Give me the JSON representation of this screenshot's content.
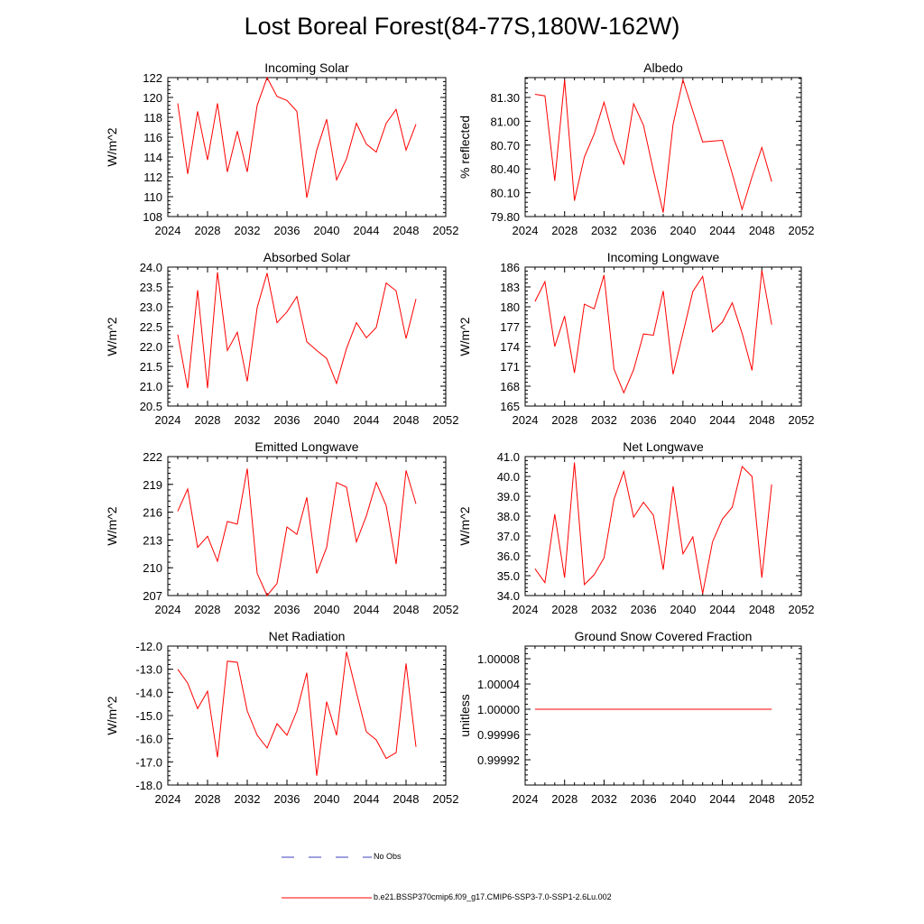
{
  "title": "Lost Boreal Forest(84-77S,180W-162W)",
  "legend": {
    "obs_label": "No Obs",
    "model_label": "b.e21.BSSP370cmip6.f09_g17.CMIP6-SSP3-7.0-SSP1-2.6Lu.002",
    "obs_color": "#3f3fbf",
    "model_color": "#ff0000"
  },
  "chart_data": [
    {
      "type": "line",
      "title": "Incoming Solar",
      "ylabel": "W/m^2",
      "xlim": [
        2024,
        2052
      ],
      "xticks": [
        "2024",
        "2028",
        "2032",
        "2036",
        "2040",
        "2044",
        "2048",
        "2052"
      ],
      "ylim": [
        108,
        122
      ],
      "yticks": [
        "108",
        "110",
        "112",
        "114",
        "116",
        "118",
        "120",
        "122"
      ],
      "x": [
        2025,
        2026,
        2027,
        2028,
        2029,
        2030,
        2031,
        2032,
        2033,
        2034,
        2035,
        2036,
        2037,
        2038,
        2039,
        2040,
        2041,
        2042,
        2043,
        2044,
        2045,
        2046,
        2047,
        2048,
        2049
      ],
      "series": [
        {
          "values": [
            119.4,
            112.3,
            118.6,
            113.7,
            119.4,
            112.5,
            116.6,
            112.5,
            119.2,
            122.0,
            120.1,
            119.7,
            118.6,
            109.9,
            114.7,
            117.8,
            111.7,
            113.8,
            117.4,
            115.3,
            114.5,
            117.4,
            118.8,
            114.7,
            117.3
          ]
        }
      ]
    },
    {
      "type": "line",
      "title": "Albedo",
      "ylabel": "% reflected",
      "xlim": [
        2024,
        2052
      ],
      "xticks": [
        "2024",
        "2028",
        "2032",
        "2036",
        "2040",
        "2044",
        "2048",
        "2052"
      ],
      "ylim": [
        79.8,
        81.55
      ],
      "yticks": [
        "79.80",
        "80.10",
        "80.40",
        "80.70",
        "81.00",
        "81.30"
      ],
      "x": [
        2025,
        2026,
        2027,
        2028,
        2029,
        2030,
        2031,
        2032,
        2033,
        2034,
        2035,
        2036,
        2037,
        2038,
        2039,
        2040,
        2041,
        2042,
        2043,
        2044,
        2045,
        2046,
        2047,
        2048,
        2049
      ],
      "series": [
        {
          "values": [
            81.34,
            81.32,
            80.25,
            81.52,
            80.0,
            80.55,
            80.84,
            81.24,
            80.77,
            80.46,
            81.22,
            80.95,
            80.38,
            79.85,
            80.96,
            81.52,
            81.13,
            80.74,
            80.75,
            80.76,
            80.34,
            79.89,
            80.3,
            80.67,
            80.24
          ]
        }
      ]
    },
    {
      "type": "line",
      "title": "Absorbed Solar",
      "ylabel": "W/m^2",
      "xlim": [
        2024,
        2052
      ],
      "xticks": [
        "2024",
        "2028",
        "2032",
        "2036",
        "2040",
        "2044",
        "2048",
        "2052"
      ],
      "ylim": [
        20.5,
        24.0
      ],
      "yticks": [
        "20.5",
        "21.0",
        "21.5",
        "22.0",
        "22.5",
        "23.0",
        "23.5",
        "24.0"
      ],
      "x": [
        2025,
        2026,
        2027,
        2028,
        2029,
        2030,
        2031,
        2032,
        2033,
        2034,
        2035,
        2036,
        2037,
        2038,
        2039,
        2040,
        2041,
        2042,
        2043,
        2044,
        2045,
        2046,
        2047,
        2048,
        2049
      ],
      "series": [
        {
          "values": [
            22.3,
            20.95,
            23.42,
            20.95,
            23.87,
            21.9,
            22.36,
            21.12,
            22.98,
            23.85,
            22.6,
            22.87,
            23.26,
            22.12,
            21.9,
            21.7,
            21.07,
            21.95,
            22.6,
            22.22,
            22.48,
            23.6,
            23.4,
            22.2,
            23.2
          ]
        }
      ]
    },
    {
      "type": "line",
      "title": "Incoming Longwave",
      "ylabel": "W/m^2",
      "xlim": [
        2024,
        2052
      ],
      "xticks": [
        "2024",
        "2028",
        "2032",
        "2036",
        "2040",
        "2044",
        "2048",
        "2052"
      ],
      "ylim": [
        165,
        186
      ],
      "yticks": [
        "165",
        "168",
        "171",
        "174",
        "177",
        "180",
        "183",
        "186"
      ],
      "x": [
        2025,
        2026,
        2027,
        2028,
        2029,
        2030,
        2031,
        2032,
        2033,
        2034,
        2035,
        2036,
        2037,
        2038,
        2039,
        2040,
        2041,
        2042,
        2043,
        2044,
        2045,
        2046,
        2047,
        2048,
        2049
      ],
      "series": [
        {
          "values": [
            180.8,
            183.8,
            174.0,
            178.6,
            170.0,
            180.4,
            179.7,
            184.8,
            170.6,
            167.0,
            170.5,
            175.9,
            175.7,
            182.4,
            169.8,
            176.0,
            182.3,
            184.6,
            176.2,
            177.7,
            180.6,
            176.0,
            170.4,
            185.5,
            177.3
          ]
        }
      ]
    },
    {
      "type": "line",
      "title": "Emitted Longwave",
      "ylabel": "W/m^2",
      "xlim": [
        2024,
        2052
      ],
      "xticks": [
        "2024",
        "2028",
        "2032",
        "2036",
        "2040",
        "2044",
        "2048",
        "2052"
      ],
      "ylim": [
        207,
        222
      ],
      "yticks": [
        "207",
        "210",
        "213",
        "216",
        "219",
        "222"
      ],
      "x": [
        2025,
        2026,
        2027,
        2028,
        2029,
        2030,
        2031,
        2032,
        2033,
        2034,
        2035,
        2036,
        2037,
        2038,
        2039,
        2040,
        2041,
        2042,
        2043,
        2044,
        2045,
        2046,
        2047,
        2048,
        2049
      ],
      "series": [
        {
          "values": [
            216.1,
            218.5,
            212.2,
            213.4,
            210.7,
            215.0,
            214.7,
            220.7,
            209.4,
            207.0,
            208.3,
            214.4,
            213.6,
            217.6,
            209.4,
            212.2,
            219.2,
            218.7,
            212.8,
            215.6,
            219.2,
            216.7,
            210.4,
            220.5,
            216.9
          ]
        }
      ]
    },
    {
      "type": "line",
      "title": "Net Longwave",
      "ylabel": "W/m^2",
      "xlim": [
        2024,
        2052
      ],
      "xticks": [
        "2024",
        "2028",
        "2032",
        "2036",
        "2040",
        "2044",
        "2048",
        "2052"
      ],
      "ylim": [
        34.0,
        41.0
      ],
      "yticks": [
        "34.0",
        "35.0",
        "36.0",
        "37.0",
        "38.0",
        "39.0",
        "40.0",
        "41.0"
      ],
      "x": [
        2025,
        2026,
        2027,
        2028,
        2029,
        2030,
        2031,
        2032,
        2033,
        2034,
        2035,
        2036,
        2037,
        2038,
        2039,
        2040,
        2041,
        2042,
        2043,
        2044,
        2045,
        2046,
        2047,
        2048,
        2049
      ],
      "series": [
        {
          "values": [
            35.35,
            34.65,
            38.1,
            34.9,
            40.7,
            34.55,
            35.05,
            35.9,
            38.85,
            40.25,
            37.95,
            38.7,
            38.05,
            35.3,
            39.5,
            36.1,
            36.95,
            34.1,
            36.7,
            37.85,
            38.45,
            40.5,
            40.0,
            34.9,
            39.6
          ]
        }
      ]
    },
    {
      "type": "line",
      "title": "Net Radiation",
      "ylabel": "W/m^2",
      "xlim": [
        2024,
        2052
      ],
      "xticks": [
        "2024",
        "2028",
        "2032",
        "2036",
        "2040",
        "2044",
        "2048",
        "2052"
      ],
      "ylim": [
        -18.0,
        -12.0
      ],
      "yticks": [
        "-18.0",
        "-17.0",
        "-16.0",
        "-15.0",
        "-14.0",
        "-13.0",
        "-12.0"
      ],
      "x": [
        2025,
        2026,
        2027,
        2028,
        2029,
        2030,
        2031,
        2032,
        2033,
        2034,
        2035,
        2036,
        2037,
        2038,
        2039,
        2040,
        2041,
        2042,
        2043,
        2044,
        2045,
        2046,
        2047,
        2048,
        2049
      ],
      "series": [
        {
          "values": [
            -13.0,
            -13.6,
            -14.7,
            -13.95,
            -16.8,
            -12.65,
            -12.7,
            -14.8,
            -15.85,
            -16.4,
            -15.35,
            -15.85,
            -14.8,
            -13.15,
            -17.6,
            -14.4,
            -15.85,
            -12.25,
            -14.0,
            -15.7,
            -16.05,
            -16.85,
            -16.6,
            -12.75,
            -16.35
          ]
        }
      ]
    },
    {
      "type": "line",
      "title": "Ground Snow Covered Fraction",
      "ylabel": "unitless",
      "xlim": [
        2024,
        2052
      ],
      "xticks": [
        "2024",
        "2028",
        "2032",
        "2036",
        "2040",
        "2044",
        "2048",
        "2052"
      ],
      "ylim": [
        0.99988,
        1.0001
      ],
      "yticks": [
        "0.99992",
        "0.99996",
        "1.00000",
        "1.00004",
        "1.00008"
      ],
      "ytick_values": [
        0.99992,
        0.99996,
        1.0,
        1.00004,
        1.00008
      ],
      "x": [
        2025,
        2026,
        2027,
        2028,
        2029,
        2030,
        2031,
        2032,
        2033,
        2034,
        2035,
        2036,
        2037,
        2038,
        2039,
        2040,
        2041,
        2042,
        2043,
        2044,
        2045,
        2046,
        2047,
        2048,
        2049
      ],
      "series": [
        {
          "values": [
            1,
            1,
            1,
            1,
            1,
            1,
            1,
            1,
            1,
            1,
            1,
            1,
            1,
            1,
            1,
            1,
            1,
            1,
            1,
            1,
            1,
            1,
            1,
            1,
            1
          ]
        }
      ]
    }
  ]
}
